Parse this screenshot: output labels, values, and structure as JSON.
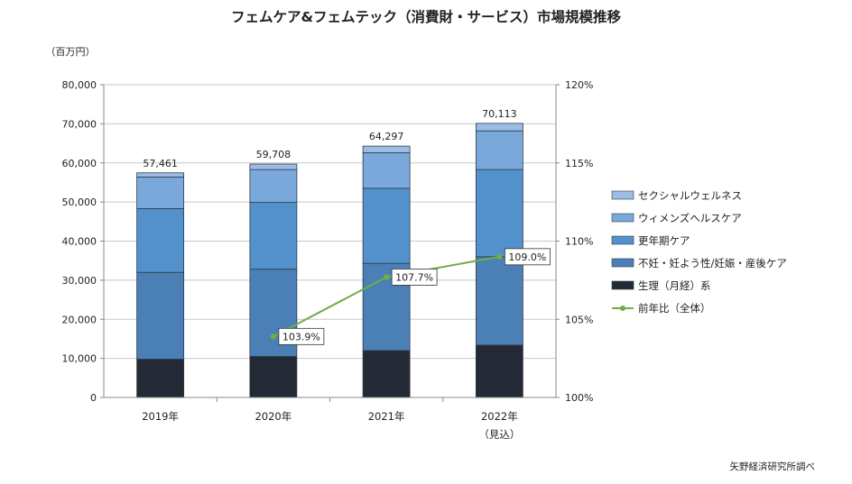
{
  "chart_data": {
    "type": "bar",
    "title": "フェムケア&フェムテック（消費財・サービス）市場規模推移",
    "unit_label": "（百万円）",
    "categories": [
      "2019年",
      "2020年",
      "2021年",
      "2022年"
    ],
    "category_notes": [
      "",
      "",
      "",
      "（見込）"
    ],
    "series": [
      {
        "name": "生理（月経）系",
        "color": "#232a35",
        "values": [
          9800,
          10500,
          12000,
          13400
        ]
      },
      {
        "name": "不妊・妊よう性/妊娠・産後ケア",
        "color": "#4b80b6",
        "values": [
          22200,
          22300,
          22300,
          22600
        ]
      },
      {
        "name": "更年期ケア",
        "color": "#5391cd",
        "values": [
          16300,
          17100,
          19200,
          22300
        ]
      },
      {
        "name": "ウィメンズヘルスケア",
        "color": "#7aa8db",
        "values": [
          8100,
          8400,
          9100,
          9900
        ]
      },
      {
        "name": "セクシャルウェルネス",
        "color": "#9bbde5",
        "values": [
          1061,
          1408,
          1697,
          1913
        ]
      }
    ],
    "totals": [
      "57,461",
      "59,708",
      "64,297",
      "70,113"
    ],
    "ratio_series": {
      "name": "前年比（全体）",
      "color": "#70ad47",
      "values": [
        null,
        103.9,
        107.7,
        109.0
      ],
      "labels": [
        "",
        "103.9%",
        "107.7%",
        "109.0%"
      ]
    },
    "y_left": {
      "min": 0,
      "max": 80000,
      "ticks": [
        "0",
        "10,000",
        "20,000",
        "30,000",
        "40,000",
        "50,000",
        "60,000",
        "70,000",
        "80,000"
      ]
    },
    "y_right": {
      "min": 100,
      "max": 120,
      "ticks": [
        "100%",
        "105%",
        "110%",
        "115%",
        "120%"
      ]
    },
    "grid": true,
    "legend_position": "right",
    "source": "矢野経済研究所調べ"
  }
}
